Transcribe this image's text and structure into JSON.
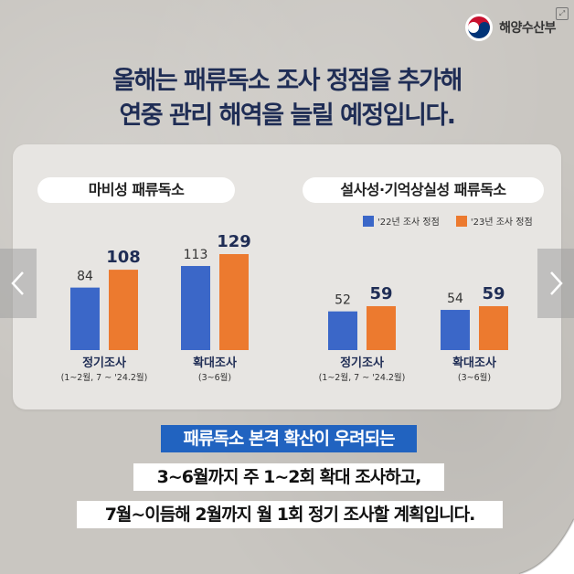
{
  "header": {
    "logo_text": "해양수산부",
    "headline_line1": "올해는 패류독소 조사 정점을 추가해",
    "headline_line2": "연중 관리 해역을 늘릴 예정입니다."
  },
  "legend": {
    "series_2022": "'22년 조사 정점",
    "series_2023": "'23년 조사 정점"
  },
  "colors": {
    "series_2022": "#3b67c8",
    "series_2023": "#ec7a2f",
    "headline": "#1f2d55",
    "tagline_bg": "#2163c0"
  },
  "footer": {
    "tagline": "패류독소 본격 확산이 우려되는",
    "sentence1": "3~6월까지 주 1~2회 확대 조사하고,",
    "sentence2": "7월~이듬해 2월까지 월 1회 정기 조사할 계획입니다."
  },
  "chart_data": [
    {
      "type": "bar",
      "title": "마비성 패류독소",
      "categories": [
        "정기조사",
        "확대조사"
      ],
      "category_subtitles": [
        "(1~2월, 7 ~ '24.2월)",
        "(3~6월)"
      ],
      "series": [
        {
          "name": "'22년 조사 정점",
          "values": [
            84,
            113
          ]
        },
        {
          "name": "'23년 조사 정점",
          "values": [
            108,
            129
          ]
        }
      ]
    },
    {
      "type": "bar",
      "title": "설사성·기억상실성 패류독소",
      "categories": [
        "정기조사",
        "확대조사"
      ],
      "category_subtitles": [
        "(1~2월, 7 ~ '24.2월)",
        "(3~6월)"
      ],
      "series": [
        {
          "name": "'22년 조사 정점",
          "values": [
            52,
            54
          ]
        },
        {
          "name": "'23년 조사 정점",
          "values": [
            59,
            59
          ]
        }
      ]
    }
  ]
}
